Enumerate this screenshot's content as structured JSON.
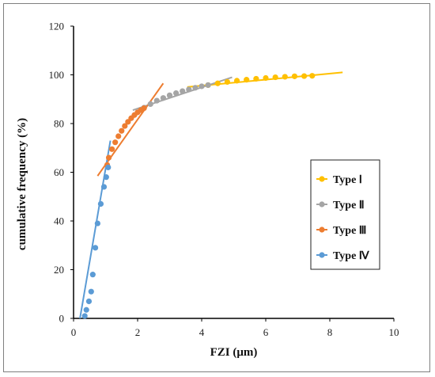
{
  "chart_data": {
    "type": "scatter",
    "xlabel": "FZI (μm)",
    "ylabel": "cumulative frequency (%)",
    "xlim": [
      0,
      10
    ],
    "ylim": [
      0,
      120
    ],
    "xticks": [
      "0",
      "2",
      "4",
      "6",
      "8",
      "10"
    ],
    "yticks": [
      "0",
      "20",
      "40",
      "60",
      "80",
      "100",
      "120"
    ],
    "grid": false,
    "legend_position": "right",
    "series": [
      {
        "name": "Type Ⅰ",
        "color": "#ffc000",
        "x": [
          4.2,
          4.5,
          4.8,
          5.1,
          5.4,
          5.7,
          6.0,
          6.3,
          6.6,
          6.9,
          7.2,
          7.45
        ],
        "y": [
          95.8,
          96.5,
          97.1,
          97.6,
          98.0,
          98.4,
          98.7,
          99.0,
          99.2,
          99.4,
          99.5,
          99.6
        ],
        "fit": {
          "x": [
            3.55,
            8.4
          ],
          "y": [
            95.0,
            101.0
          ]
        }
      },
      {
        "name": "Type Ⅱ",
        "color": "#a5a5a5",
        "x": [
          2.2,
          2.4,
          2.6,
          2.8,
          3.0,
          3.2,
          3.4,
          3.6,
          3.8,
          4.0,
          4.2
        ],
        "y": [
          86.5,
          88.0,
          89.4,
          90.5,
          91.6,
          92.5,
          93.3,
          94.0,
          94.7,
          95.3,
          95.8
        ],
        "fit": {
          "x": [
            1.85,
            4.95
          ],
          "y": [
            85.5,
            99.0
          ]
        }
      },
      {
        "name": "Type Ⅲ",
        "color": "#ed7d31",
        "x": [
          1.05,
          1.1,
          1.2,
          1.3,
          1.4,
          1.5,
          1.6,
          1.7,
          1.8,
          1.9,
          2.0,
          2.1,
          2.2
        ],
        "y": [
          63.0,
          66.0,
          69.5,
          72.3,
          74.8,
          77.0,
          79.0,
          80.7,
          82.2,
          83.5,
          84.6,
          85.5,
          86.3
        ],
        "fit": {
          "x": [
            0.75,
            2.8
          ],
          "y": [
            58.5,
            96.5
          ]
        }
      },
      {
        "name": "Type Ⅳ",
        "color": "#5b9bd5",
        "x": [
          0.35,
          0.4,
          0.48,
          0.55,
          0.6,
          0.68,
          0.75,
          0.85,
          0.95,
          1.02,
          1.08
        ],
        "y": [
          1.0,
          3.5,
          7.0,
          11.0,
          18.0,
          29.0,
          39.0,
          47.0,
          54.0,
          58.0,
          62.0
        ],
        "fit": {
          "x": [
            0.2,
            1.15
          ],
          "y": [
            0.0,
            73.0
          ]
        }
      }
    ]
  }
}
